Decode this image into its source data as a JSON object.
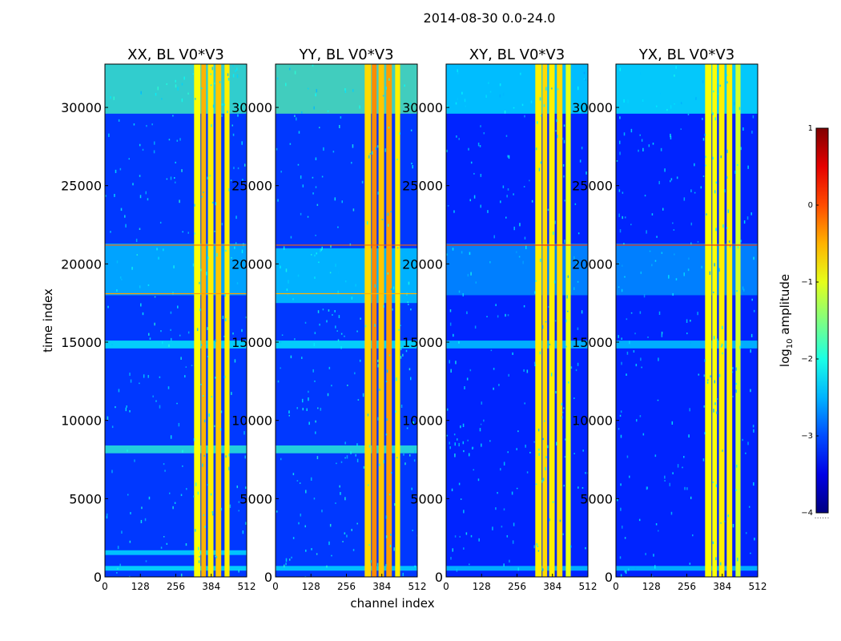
{
  "chart_data": {
    "type": "heatmap",
    "title": "2014-08-30 0.0-24.0",
    "xlabel": "channel index",
    "ylabel": "time index",
    "xlim": [
      0,
      512
    ],
    "ylim": [
      0,
      32768
    ],
    "xticks": [
      0,
      128,
      256,
      384,
      512
    ],
    "yticks": [
      0,
      5000,
      10000,
      15000,
      20000,
      25000,
      30000
    ],
    "colorbar": {
      "label_prefix": "log",
      "label_sub": "10",
      "label_suffix": " amplitude",
      "range": [
        -4,
        1
      ],
      "ticks": [
        "1",
        "0",
        "−1",
        "−2",
        "−3",
        "−4"
      ],
      "ticks_values": [
        1,
        0,
        -1,
        -2,
        -3,
        -4
      ],
      "extra_label": "......"
    },
    "panels": [
      {
        "title": "XX, BL V0*V3",
        "background_level": -3.1,
        "bands": [
          {
            "ch": [
              322,
              345
            ],
            "level": -0.9
          },
          {
            "ch": [
              348,
              365
            ],
            "level": -0.5
          },
          {
            "ch": [
              372,
              392
            ],
            "level": -0.8
          },
          {
            "ch": [
              400,
              420
            ],
            "level": -0.6
          },
          {
            "ch": [
              432,
              450
            ],
            "level": -0.8
          }
        ],
        "time_features": [
          {
            "t": [
              29600,
              32768
            ],
            "level": -1.8
          },
          {
            "t": [
              18000,
              21300
            ],
            "level": -2.4
          },
          {
            "t": [
              14600,
              15100
            ],
            "level": -2.1
          },
          {
            "t": [
              7900,
              8400
            ],
            "level": -1.9
          },
          {
            "t": [
              1400,
              1700
            ],
            "level": -2.2
          },
          {
            "t": [
              400,
              700
            ],
            "level": -2.1
          }
        ],
        "lines": [
          {
            "t": 21200,
            "level": -0.1
          },
          {
            "t": 18100,
            "level": -0.4
          }
        ]
      },
      {
        "title": "YY, BL V0*V3",
        "background_level": -3.1,
        "bands": [
          {
            "ch": [
              322,
              345
            ],
            "level": -0.7
          },
          {
            "ch": [
              348,
              365
            ],
            "level": -0.3
          },
          {
            "ch": [
              372,
              392
            ],
            "level": -0.6
          },
          {
            "ch": [
              400,
              420
            ],
            "level": -0.4
          },
          {
            "ch": [
              432,
              450
            ],
            "level": -0.8
          }
        ],
        "time_features": [
          {
            "t": [
              29600,
              32768
            ],
            "level": -1.7
          },
          {
            "t": [
              17500,
              21000
            ],
            "level": -2.3
          },
          {
            "t": [
              14600,
              15100
            ],
            "level": -2.1
          },
          {
            "t": [
              7900,
              8400
            ],
            "level": -1.9
          },
          {
            "t": [
              400,
              700
            ],
            "level": -2.2
          }
        ],
        "lines": [
          {
            "t": 21200,
            "level": -0.1
          },
          {
            "t": 18100,
            "level": -0.5
          }
        ]
      },
      {
        "title": "XY, BL V0*V3",
        "background_level": -3.2,
        "bands": [
          {
            "ch": [
              322,
              345
            ],
            "level": -0.8
          },
          {
            "ch": [
              348,
              365
            ],
            "level": -0.7
          },
          {
            "ch": [
              372,
              392
            ],
            "level": -0.8
          },
          {
            "ch": [
              400,
              420
            ],
            "level": -0.7
          },
          {
            "ch": [
              432,
              450
            ],
            "level": -1.0
          }
        ],
        "time_features": [
          {
            "t": [
              29600,
              32768
            ],
            "level": -2.2
          },
          {
            "t": [
              18000,
              21300
            ],
            "level": -2.6
          },
          {
            "t": [
              14600,
              15100
            ],
            "level": -2.3
          },
          {
            "t": [
              400,
              700
            ],
            "level": -2.3
          }
        ],
        "lines": [
          {
            "t": 21200,
            "level": 0.2
          }
        ]
      },
      {
        "title": "YX, BL V0*V3",
        "background_level": -3.2,
        "bands": [
          {
            "ch": [
              322,
              345
            ],
            "level": -0.9
          },
          {
            "ch": [
              348,
              365
            ],
            "level": -0.9
          },
          {
            "ch": [
              372,
              392
            ],
            "level": -0.8
          },
          {
            "ch": [
              400,
              420
            ],
            "level": -0.8
          },
          {
            "ch": [
              432,
              450
            ],
            "level": -1.1
          }
        ],
        "time_features": [
          {
            "t": [
              29600,
              32768
            ],
            "level": -2.1
          },
          {
            "t": [
              18000,
              21300
            ],
            "level": -2.6
          },
          {
            "t": [
              14600,
              15100
            ],
            "level": -2.3
          },
          {
            "t": [
              400,
              700
            ],
            "level": -2.3
          }
        ],
        "lines": [
          {
            "t": 21200,
            "level": 0.2
          }
        ]
      }
    ]
  }
}
